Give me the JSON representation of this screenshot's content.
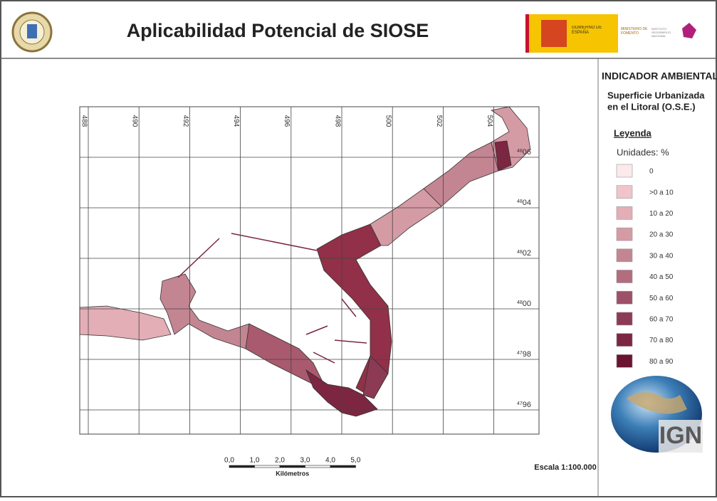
{
  "header": {
    "title": "Aplicabilidad Potencial de SIOSE",
    "gov_logo": "GOBIERNO DE ESPAÑA",
    "ministry": "MINISTERIO DE FOMENTO",
    "institute": "INSTITUTO GEOGRÁFICO NACIONAL"
  },
  "map": {
    "x_labels": [
      "488",
      "490",
      "492",
      "494",
      "496",
      "498",
      "500",
      "502",
      "504"
    ],
    "y_labels": [
      {
        "prefix": "48",
        "value": "06"
      },
      {
        "prefix": "48",
        "value": "04"
      },
      {
        "prefix": "48",
        "value": "02"
      },
      {
        "prefix": "48",
        "value": "00"
      },
      {
        "prefix": "47",
        "value": "98"
      },
      {
        "prefix": "47",
        "value": "96"
      }
    ],
    "scale_bar": {
      "ticks": [
        "0,0",
        "1,0",
        "2,0",
        "3,0",
        "4,0",
        "5,0"
      ],
      "unit": "Kilómetros"
    },
    "scale": "Escala 1:100.000"
  },
  "sidebar": {
    "heading": "INDICADOR AMBIENTAL",
    "subtitle_1": "Superficie Urbanizada",
    "subtitle_2": "en el Litoral (O.S.E.)",
    "legend_title": "Leyenda",
    "units": "Unidades: %",
    "legend": [
      {
        "label": "0",
        "color": "#fbe9ec"
      },
      {
        "label": ">0 a 10",
        "color": "#f1c4ca"
      },
      {
        "label": "10 a 20",
        "color": "#e3aeb6"
      },
      {
        "label": "20 a 30",
        "color": "#d59ba5"
      },
      {
        "label": "30 a 40",
        "color": "#c48592"
      },
      {
        "label": "40 a 50",
        "color": "#b26d7e"
      },
      {
        "label": "50 a 60",
        "color": "#9e5068"
      },
      {
        "label": "60 a 70",
        "color": "#8d3a54"
      },
      {
        "label": "70 a 80",
        "color": "#7c2642"
      },
      {
        "label": "80 a 90",
        "color": "#6b1332"
      }
    ],
    "logo": "IGN"
  }
}
